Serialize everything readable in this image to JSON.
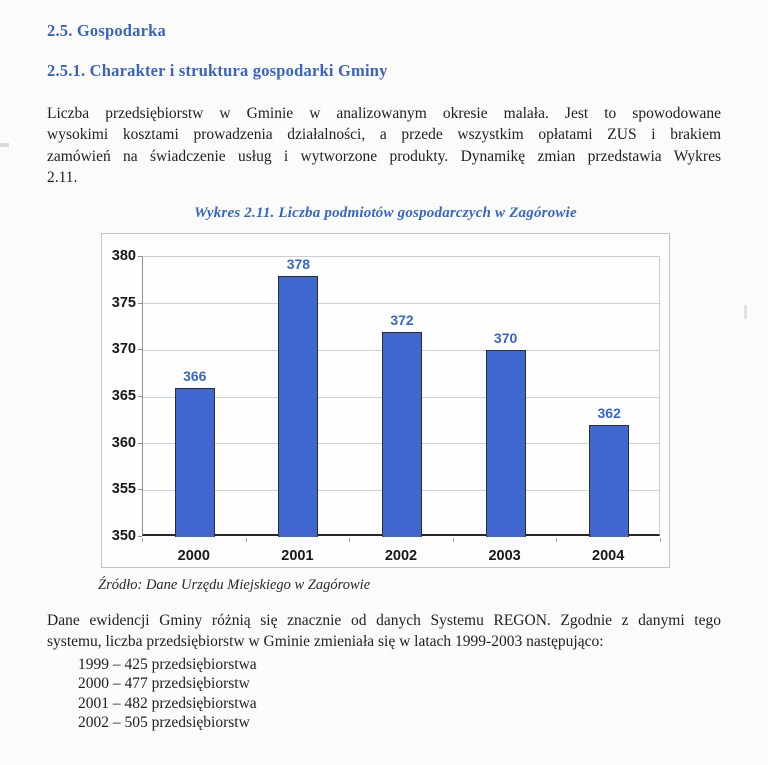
{
  "page": {
    "heading1": "2.5. Gospodarka",
    "heading2": "2.5.1. Charakter i struktura gospodarki Gminy",
    "paragraph1_lines": [
      "Liczba przedsiębiorstw w Gminie w analizowanym okresie malała. Jest to spowodowane",
      "wysokimi kosztami prowadzenia działalności, a przede wszystkim opłatami ZUS i brakiem",
      "zamówień na świadczenie usług i wytworzone produkty. Dynamikę zmian przedstawia Wykres",
      "2.11."
    ],
    "source_note": "Źródło: Dane Urzędu Miejskiego w Zagórowie",
    "paragraph2_lines": [
      "Dane ewidencji Gminy różnią się znacznie od danych Systemu REGON. Zgodnie z danymi tego",
      "systemu, liczba przedsiębiorstw w Gminie zmieniała się w latach 1999-2003 następująco:"
    ],
    "regon_list": [
      "1999 – 425 przedsiębiorstwa",
      "2000 – 477 przedsiębiorstw",
      "2001 – 482 przedsiębiorstwa",
      "2002 – 505 przedsiębiorstw"
    ]
  },
  "chart_data": {
    "type": "bar",
    "title": "Wykres 2.11. Liczba podmiotów gospodarczych w Zagórowie",
    "categories": [
      "2000",
      "2001",
      "2002",
      "2003",
      "2004"
    ],
    "values": [
      366,
      378,
      372,
      370,
      362
    ],
    "xlabel": "",
    "ylabel": "",
    "ylim": [
      350,
      380
    ],
    "yticks": [
      350,
      355,
      360,
      365,
      370,
      375,
      380
    ],
    "grid": true,
    "legend": false,
    "value_labels": true,
    "bar_color": "#4067d0",
    "bar_border_color": "#2b2e33",
    "value_label_color": "#3565cd",
    "heading_color": "#3a63c6",
    "title_color": "#3565cd"
  }
}
